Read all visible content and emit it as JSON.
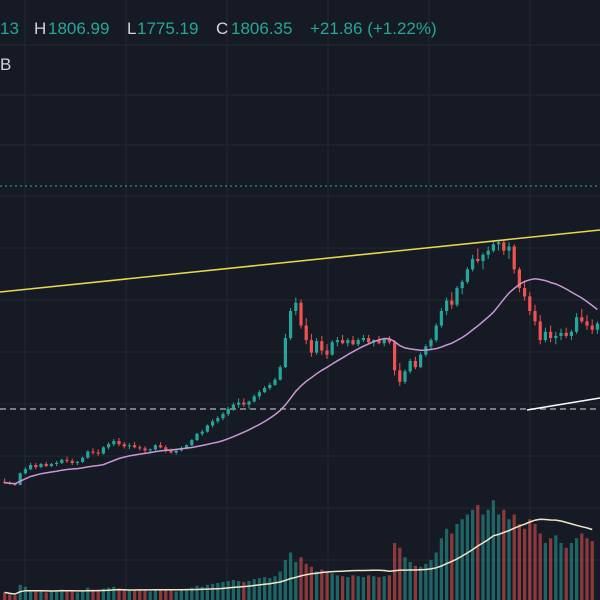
{
  "legend": {
    "open_fragment": "13",
    "high_key": "H",
    "high_value": "1806.99",
    "low_key": "L",
    "low_value": "1775.19",
    "close_key": "C",
    "close_value": "1806.35",
    "change": "+21.86 (+1.22%)"
  },
  "indicator_fragment": "B",
  "colors": {
    "background": "#161a25",
    "grid": "#242833",
    "up": "#26a69a",
    "down": "#ef5350",
    "ma_line": "#c997d4",
    "trend_line": "#e8d84a",
    "volume_ma": "#f0e6c8",
    "dotted_level": "#2b8c8c",
    "dashed_level": "#b2b5be",
    "white_line": "#ffffff"
  },
  "chart_data": {
    "type": "candlestick",
    "series": [
      {
        "name": "",
        "values": [
          [
            0.38,
            0.41,
            0.36,
            0.37
          ],
          [
            0.37,
            0.385,
            0.35,
            0.36
          ],
          [
            0.36,
            0.37,
            0.34,
            0.35
          ],
          [
            0.35,
            0.47,
            0.345,
            0.46
          ],
          [
            0.46,
            0.52,
            0.45,
            0.5
          ],
          [
            0.5,
            0.56,
            0.49,
            0.54
          ],
          [
            0.54,
            0.56,
            0.5,
            0.52
          ],
          [
            0.52,
            0.56,
            0.51,
            0.55
          ],
          [
            0.55,
            0.57,
            0.52,
            0.53
          ],
          [
            0.53,
            0.56,
            0.52,
            0.55
          ],
          [
            0.55,
            0.58,
            0.53,
            0.56
          ],
          [
            0.56,
            0.6,
            0.55,
            0.59
          ],
          [
            0.59,
            0.62,
            0.56,
            0.58
          ],
          [
            0.58,
            0.6,
            0.54,
            0.56
          ],
          [
            0.56,
            0.58,
            0.54,
            0.57
          ],
          [
            0.57,
            0.62,
            0.56,
            0.61
          ],
          [
            0.61,
            0.68,
            0.6,
            0.67
          ],
          [
            0.67,
            0.7,
            0.64,
            0.66
          ],
          [
            0.66,
            0.69,
            0.63,
            0.65
          ],
          [
            0.65,
            0.72,
            0.64,
            0.71
          ],
          [
            0.71,
            0.76,
            0.69,
            0.74
          ],
          [
            0.74,
            0.79,
            0.72,
            0.77
          ],
          [
            0.77,
            0.8,
            0.72,
            0.74
          ],
          [
            0.74,
            0.76,
            0.7,
            0.72
          ],
          [
            0.72,
            0.75,
            0.69,
            0.73
          ],
          [
            0.73,
            0.76,
            0.7,
            0.71
          ],
          [
            0.71,
            0.73,
            0.68,
            0.7
          ],
          [
            0.7,
            0.72,
            0.66,
            0.68
          ],
          [
            0.68,
            0.7,
            0.65,
            0.69
          ],
          [
            0.69,
            0.74,
            0.68,
            0.73
          ],
          [
            0.73,
            0.76,
            0.7,
            0.71
          ],
          [
            0.71,
            0.73,
            0.66,
            0.68
          ],
          [
            0.68,
            0.7,
            0.65,
            0.66
          ],
          [
            0.66,
            0.69,
            0.64,
            0.68
          ],
          [
            0.68,
            0.72,
            0.67,
            0.7
          ],
          [
            0.7,
            0.74,
            0.69,
            0.73
          ],
          [
            0.73,
            0.79,
            0.72,
            0.78
          ],
          [
            0.78,
            0.85,
            0.77,
            0.84
          ],
          [
            0.84,
            0.88,
            0.82,
            0.86
          ],
          [
            0.86,
            0.93,
            0.85,
            0.92
          ],
          [
            0.92,
            0.98,
            0.9,
            0.96
          ],
          [
            0.96,
            1.01,
            0.94,
            0.99
          ],
          [
            0.99,
            1.05,
            0.97,
            1.03
          ],
          [
            1.03,
            1.1,
            1.01,
            1.08
          ],
          [
            1.08,
            1.14,
            1.06,
            1.12
          ],
          [
            1.12,
            1.18,
            1.09,
            1.14
          ],
          [
            1.14,
            1.18,
            1.1,
            1.12
          ],
          [
            1.12,
            1.16,
            1.08,
            1.15
          ],
          [
            1.15,
            1.22,
            1.14,
            1.2
          ],
          [
            1.2,
            1.26,
            1.17,
            1.24
          ],
          [
            1.24,
            1.3,
            1.23,
            1.28
          ],
          [
            1.28,
            1.33,
            1.26,
            1.31
          ],
          [
            1.31,
            1.38,
            1.3,
            1.36
          ],
          [
            1.36,
            1.5,
            1.35,
            1.48
          ],
          [
            1.48,
            1.8,
            1.47,
            1.76
          ],
          [
            1.76,
            2.05,
            1.74,
            2.02
          ],
          [
            2.02,
            2.15,
            1.98,
            2.1
          ],
          [
            2.1,
            2.13,
            1.85,
            1.88
          ],
          [
            1.88,
            1.95,
            1.7,
            1.74
          ],
          [
            1.74,
            1.8,
            1.58,
            1.62
          ],
          [
            1.62,
            1.76,
            1.6,
            1.73
          ],
          [
            1.73,
            1.78,
            1.6,
            1.64
          ],
          [
            1.64,
            1.7,
            1.56,
            1.6
          ],
          [
            1.6,
            1.74,
            1.59,
            1.72
          ],
          [
            1.72,
            1.77,
            1.68,
            1.74
          ],
          [
            1.74,
            1.79,
            1.7,
            1.71
          ],
          [
            1.71,
            1.76,
            1.68,
            1.74
          ],
          [
            1.74,
            1.78,
            1.69,
            1.7
          ],
          [
            1.7,
            1.76,
            1.68,
            1.74
          ],
          [
            1.74,
            1.79,
            1.72,
            1.76
          ],
          [
            1.76,
            1.79,
            1.7,
            1.72
          ],
          [
            1.72,
            1.75,
            1.68,
            1.74
          ],
          [
            1.74,
            1.78,
            1.7,
            1.71
          ],
          [
            1.71,
            1.76,
            1.68,
            1.75
          ],
          [
            1.75,
            1.78,
            1.7,
            1.72
          ],
          [
            1.72,
            1.74,
            1.4,
            1.45
          ],
          [
            1.45,
            1.52,
            1.3,
            1.34
          ],
          [
            1.34,
            1.46,
            1.32,
            1.44
          ],
          [
            1.44,
            1.56,
            1.42,
            1.54
          ],
          [
            1.54,
            1.58,
            1.46,
            1.48
          ],
          [
            1.48,
            1.62,
            1.47,
            1.6
          ],
          [
            1.6,
            1.7,
            1.58,
            1.68
          ],
          [
            1.68,
            1.76,
            1.64,
            1.74
          ],
          [
            1.74,
            1.9,
            1.72,
            1.88
          ],
          [
            1.88,
            2.05,
            1.86,
            2.02
          ],
          [
            2.02,
            2.15,
            1.98,
            2.12
          ],
          [
            2.12,
            2.2,
            2.04,
            2.08
          ],
          [
            2.08,
            2.26,
            2.06,
            2.24
          ],
          [
            2.24,
            2.32,
            2.18,
            2.3
          ],
          [
            2.3,
            2.44,
            2.28,
            2.42
          ],
          [
            2.42,
            2.56,
            2.4,
            2.52
          ],
          [
            2.52,
            2.62,
            2.48,
            2.5
          ],
          [
            2.5,
            2.58,
            2.42,
            2.56
          ],
          [
            2.56,
            2.64,
            2.52,
            2.6
          ],
          [
            2.6,
            2.69,
            2.58,
            2.66
          ],
          [
            2.66,
            2.7,
            2.6,
            2.68
          ],
          [
            2.68,
            2.7,
            2.56,
            2.6
          ],
          [
            2.6,
            2.68,
            2.52,
            2.64
          ],
          [
            2.64,
            2.66,
            2.38,
            2.42
          ],
          [
            2.42,
            2.44,
            2.2,
            2.24
          ],
          [
            2.24,
            2.3,
            2.12,
            2.16
          ],
          [
            2.16,
            2.2,
            1.98,
            2.02
          ],
          [
            2.02,
            2.08,
            1.88,
            1.92
          ],
          [
            1.92,
            1.98,
            1.7,
            1.74
          ],
          [
            1.74,
            1.86,
            1.72,
            1.82
          ],
          [
            1.82,
            1.88,
            1.72,
            1.76
          ],
          [
            1.76,
            1.82,
            1.7,
            1.78
          ],
          [
            1.78,
            1.85,
            1.74,
            1.81
          ],
          [
            1.81,
            1.86,
            1.76,
            1.78
          ],
          [
            1.78,
            1.84,
            1.74,
            1.82
          ],
          [
            1.82,
            2.0,
            1.8,
            1.96
          ],
          [
            1.96,
            2.04,
            1.9,
            1.92
          ],
          [
            1.92,
            1.98,
            1.84,
            1.88
          ],
          [
            1.88,
            1.94,
            1.8,
            1.84
          ],
          [
            1.84,
            1.92,
            1.8,
            1.9
          ]
        ]
      }
    ],
    "volume": [
      0.8,
      0.6,
      0.5,
      1.6,
      1.4,
      1.0,
      0.9,
      1.0,
      0.8,
      0.9,
      1.0,
      1.1,
      1.0,
      0.9,
      0.8,
      1.0,
      1.3,
      1.1,
      1.0,
      1.2,
      1.3,
      1.4,
      1.2,
      1.1,
      1.0,
      1.1,
      1.0,
      1.0,
      0.9,
      1.1,
      1.0,
      1.1,
      1.0,
      0.9,
      1.0,
      1.1,
      1.3,
      1.5,
      1.4,
      1.6,
      1.7,
      1.8,
      1.9,
      2.0,
      2.1,
      2.0,
      1.9,
      2.0,
      2.2,
      2.3,
      2.4,
      2.3,
      2.5,
      3.0,
      4.2,
      5.0,
      4.0,
      4.5,
      3.8,
      3.5,
      3.0,
      3.2,
      3.0,
      2.8,
      2.6,
      2.5,
      2.4,
      2.6,
      2.5,
      2.4,
      2.6,
      2.5,
      2.4,
      2.5,
      2.6,
      6.0,
      5.5,
      4.5,
      4.0,
      3.6,
      3.5,
      3.8,
      4.2,
      5.0,
      6.5,
      7.5,
      7.0,
      8.0,
      8.5,
      9.0,
      9.5,
      10.0,
      9.0,
      9.5,
      10.5,
      9.0,
      9.5,
      8.5,
      9.0,
      8.0,
      7.5,
      8.5,
      8.0,
      7.0,
      6.0,
      6.5,
      6.8,
      6.0,
      5.5,
      6.0,
      6.5,
      7.0,
      6.5,
      6.2
    ],
    "grid": true,
    "trend_line": true,
    "moving_average": true
  }
}
